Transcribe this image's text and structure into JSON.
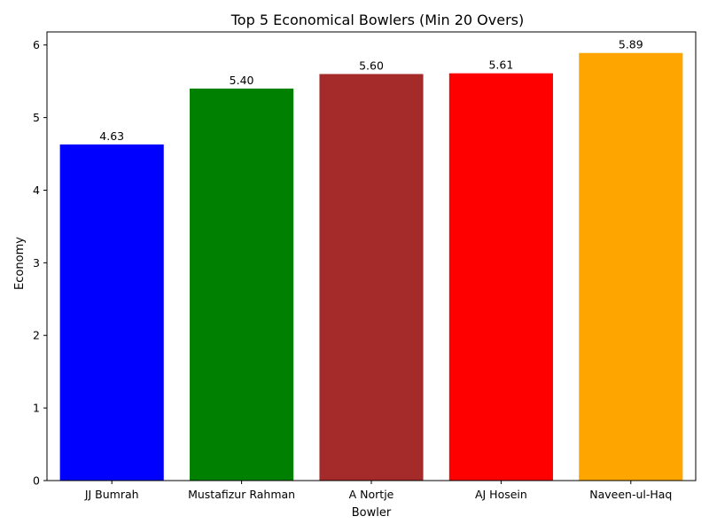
{
  "chart_data": {
    "type": "bar",
    "title": "Top 5 Economical Bowlers (Min 20 Overs)",
    "xlabel": "Bowler",
    "ylabel": "Economy",
    "categories": [
      "JJ Bumrah",
      "Mustafizur Rahman",
      "A Nortje",
      "AJ Hosein",
      "Naveen-ul-Haq"
    ],
    "values": [
      4.63,
      5.4,
      5.6,
      5.61,
      5.89
    ],
    "data_labels": [
      "4.63",
      "5.40",
      "5.60",
      "5.61",
      "5.89"
    ],
    "colors": [
      "#0000ff",
      "#008000",
      "#a52a2a",
      "#ff0000",
      "#ffa500"
    ],
    "yticks": [
      0,
      1,
      2,
      3,
      4,
      5,
      6
    ],
    "ylim": [
      0,
      6.18
    ],
    "grid": false,
    "legend": "none"
  }
}
